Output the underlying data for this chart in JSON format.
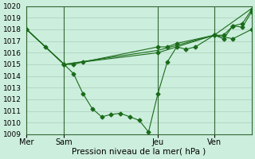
{
  "background_color": "#cceedd",
  "grid_color": "#aaccbb",
  "line_color": "#1a6b1a",
  "xlabel": "Pression niveau de la mer( hPa )",
  "ylim": [
    1009,
    1020
  ],
  "yticks": [
    1009,
    1010,
    1011,
    1012,
    1013,
    1014,
    1015,
    1016,
    1017,
    1018,
    1019,
    1020
  ],
  "day_labels": [
    "Mer",
    "Sam",
    "Jeu",
    "Ven"
  ],
  "day_positions": [
    0,
    4,
    14,
    20
  ],
  "xlim": [
    0,
    24
  ],
  "series1_x": [
    0,
    2,
    4,
    5,
    6,
    7,
    8,
    9,
    10,
    11,
    12,
    13,
    14,
    15,
    16,
    17,
    18,
    20,
    21,
    22,
    23,
    24
  ],
  "series1_y": [
    1018,
    1016.5,
    1015,
    1014.2,
    1012.5,
    1011.2,
    1010.5,
    1010.7,
    1010.8,
    1010.5,
    1010.2,
    1009.2,
    1012.5,
    1015.2,
    1016.5,
    1016.3,
    1016.5,
    1017.5,
    1017.2,
    1018.3,
    1018.5,
    1019.7
  ],
  "series2_x": [
    0,
    4,
    14,
    20,
    21,
    22,
    23,
    24
  ],
  "series2_y": [
    1018,
    1015,
    1016.0,
    1017.5,
    1017.5,
    1018.3,
    1018.2,
    1019.5
  ],
  "series3_x": [
    0,
    4,
    5,
    6,
    14,
    15,
    16,
    20,
    22,
    24
  ],
  "series3_y": [
    1018,
    1015,
    1015.0,
    1015.2,
    1016.5,
    1016.5,
    1016.8,
    1017.5,
    1017.2,
    1018.0
  ],
  "series4_x": [
    0,
    4,
    14,
    20,
    24
  ],
  "series4_y": [
    1018,
    1015,
    1016.2,
    1017.5,
    1019.8
  ]
}
